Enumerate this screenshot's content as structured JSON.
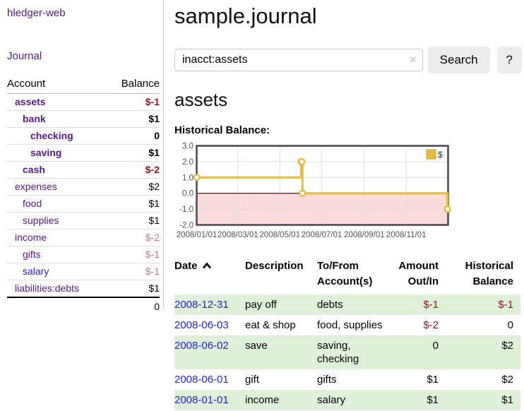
{
  "sidebar": {
    "brand": "hledger-web",
    "nav_journal": "Journal",
    "header": {
      "account": "Account",
      "balance": "Balance"
    },
    "accounts": [
      {
        "name": "assets",
        "balance": "$-1",
        "indent": 1,
        "bold": true,
        "neg": "strong"
      },
      {
        "name": "bank",
        "balance": "$1",
        "indent": 2,
        "bold": true,
        "neg": null
      },
      {
        "name": "checking",
        "balance": "0",
        "indent": 3,
        "bold": true,
        "neg": null
      },
      {
        "name": "saving",
        "balance": "$1",
        "indent": 3,
        "bold": true,
        "neg": null
      },
      {
        "name": "cash",
        "balance": "$-2",
        "indent": 2,
        "bold": true,
        "neg": "strong"
      },
      {
        "name": "expenses",
        "balance": "$2",
        "indent": 1,
        "bold": false,
        "neg": null
      },
      {
        "name": "food",
        "balance": "$1",
        "indent": 2,
        "bold": false,
        "neg": null
      },
      {
        "name": "supplies",
        "balance": "$1",
        "indent": 2,
        "bold": false,
        "neg": null
      },
      {
        "name": "income",
        "balance": "$-2",
        "indent": 1,
        "bold": false,
        "neg": "dim"
      },
      {
        "name": "gifts",
        "balance": "$-1",
        "indent": 2,
        "bold": false,
        "neg": "dim"
      },
      {
        "name": "salary",
        "balance": "$-1",
        "indent": 2,
        "bold": false,
        "neg": "dim",
        "blue": true
      },
      {
        "name": "liabilities:debts",
        "balance": "$1",
        "indent": 1,
        "bold": false,
        "neg": null
      }
    ],
    "total": "0"
  },
  "main": {
    "title": "sample.journal",
    "search": {
      "value": "inacct:assets",
      "clear_icon": "×",
      "button_label": "Search",
      "help_label": "?"
    },
    "account_heading": "assets",
    "chart_label": "Historical Balance:"
  },
  "chart_data": {
    "type": "line",
    "title": "Historical Balance:",
    "step": true,
    "xlim": [
      0,
      1
    ],
    "ylim": [
      -2,
      3
    ],
    "y_ticks": [
      3,
      2,
      1,
      0,
      -1,
      -2
    ],
    "x_ticks": [
      {
        "f": 0.0,
        "label": "2008/01/01"
      },
      {
        "f": 0.1639,
        "label": "2008/03/01"
      },
      {
        "f": 0.3306,
        "label": "2008/05/01"
      },
      {
        "f": 0.4973,
        "label": "2008/07/01"
      },
      {
        "f": 0.6667,
        "label": "2008/09/01"
      },
      {
        "f": 0.8333,
        "label": "2008/11/01"
      }
    ],
    "series": [
      {
        "name": "$",
        "color": "#e6bb43",
        "points": [
          {
            "x": 0.0,
            "y": 1,
            "date": "2008-01-01"
          },
          {
            "x": 0.4153,
            "y": 2,
            "date": "2008-06-01"
          },
          {
            "x": 0.418,
            "y": 2,
            "date": "2008-06-02"
          },
          {
            "x": 0.4208,
            "y": 0,
            "date": "2008-06-03"
          },
          {
            "x": 0.9973,
            "y": -1,
            "date": "2008-12-31"
          }
        ]
      }
    ],
    "legend": {
      "label": "$",
      "position": "top-right"
    },
    "grid": true,
    "grid_color": "#e0e0e0",
    "border_color": "#4d4d4d",
    "negative_region_fill": "#fbdcdc",
    "zero_line_color": "#8e1b1b"
  },
  "register": {
    "headers": {
      "date": "Date",
      "description": "Description",
      "accounts": "To/From Account(s)",
      "amount": "Amount Out/In",
      "balance": "Historical Balance"
    },
    "rows": [
      {
        "date": "2008-12-31",
        "description": "pay off",
        "accounts": "debts",
        "amount": "$-1",
        "balance": "$-1",
        "amount_neg": true,
        "balance_neg": true,
        "shaded": true
      },
      {
        "date": "2008-06-03",
        "description": "eat & shop",
        "accounts": "food, supplies",
        "amount": "$-2",
        "balance": "0",
        "amount_neg": true,
        "balance_neg": false,
        "shaded": false
      },
      {
        "date": "2008-06-02",
        "description": "save",
        "accounts": "saving, checking",
        "amount": "0",
        "balance": "$2",
        "amount_neg": false,
        "balance_neg": false,
        "shaded": true
      },
      {
        "date": "2008-06-01",
        "description": "gift",
        "accounts": "gifts",
        "amount": "$1",
        "balance": "$2",
        "amount_neg": false,
        "balance_neg": false,
        "shaded": false
      },
      {
        "date": "2008-01-01",
        "description": "income",
        "accounts": "salary",
        "amount": "$1",
        "balance": "$1",
        "amount_neg": false,
        "balance_neg": false,
        "shaded": true
      }
    ]
  }
}
